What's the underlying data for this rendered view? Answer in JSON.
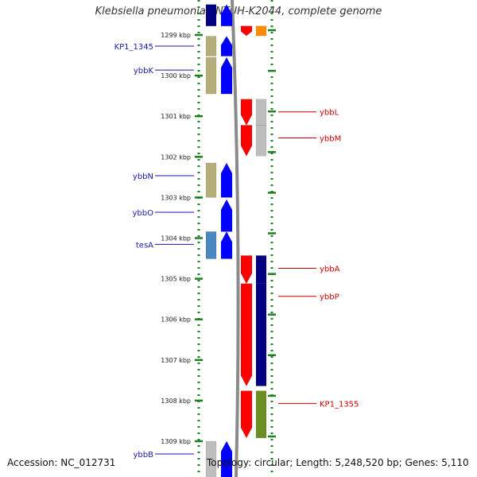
{
  "title": "Klebsiella pneumoniae NTUH-K2044, complete genome",
  "footer": {
    "accession": "Accession: NC_012731",
    "topology": "Topology: circular; Length: 5,248,520 bp; Genes: 5,110"
  },
  "colors": {
    "forward_label": "#1a1aa8",
    "reverse_label": "#cc0000",
    "tick": "#1e7f1e",
    "backbone": "#8a8a8a",
    "blue": "#0000ff",
    "red": "#ff0000",
    "navy": "#000080",
    "khaki": "#b5ad7a",
    "grey": "#bdbdbd",
    "steel": "#4a86c0",
    "olive": "#6b8e23",
    "lime": "#99e633",
    "orange": "#ff8c00"
  },
  "axis": {
    "unit": "kbp",
    "ticks": [
      {
        "label": "1299 kbp",
        "kbp": 1299
      },
      {
        "label": "1300 kbp",
        "kbp": 1300
      },
      {
        "label": "1301 kbp",
        "kbp": 1301
      },
      {
        "label": "1302 kbp",
        "kbp": 1302
      },
      {
        "label": "1303 kbp",
        "kbp": 1303
      },
      {
        "label": "1304 kbp",
        "kbp": 1304
      },
      {
        "label": "1305 kbp",
        "kbp": 1305
      },
      {
        "label": "1306 kbp",
        "kbp": 1306
      },
      {
        "label": "1307 kbp",
        "kbp": 1307
      },
      {
        "label": "1308 kbp",
        "kbp": 1308
      },
      {
        "label": "1309 kbp",
        "kbp": 1309
      }
    ]
  },
  "genes": [
    {
      "name": "",
      "strand": "+",
      "start": 1298.25,
      "end": 1298.78,
      "color": "blue",
      "cog": "navy"
    },
    {
      "name": "",
      "strand": "-",
      "start": 1298.78,
      "end": 1299.02,
      "color": "red",
      "cog": "orange"
    },
    {
      "name": "KP1_1345",
      "strand": "+",
      "start": 1299.03,
      "end": 1299.52,
      "color": "blue",
      "cog": "khaki"
    },
    {
      "name": "ybbK",
      "strand": "+",
      "start": 1299.55,
      "end": 1300.45,
      "color": "blue",
      "cog": "khaki"
    },
    {
      "name": "ybbL",
      "strand": "-",
      "start": 1300.58,
      "end": 1301.22,
      "color": "red",
      "cog": "grey"
    },
    {
      "name": "ybbM",
      "strand": "-",
      "start": 1301.22,
      "end": 1301.98,
      "color": "red",
      "cog": "grey"
    },
    {
      "name": "ybbN",
      "strand": "+",
      "start": 1302.15,
      "end": 1303.0,
      "color": "blue",
      "cog": "khaki"
    },
    {
      "name": "ybbO",
      "strand": "+",
      "start": 1303.05,
      "end": 1303.84,
      "color": "blue",
      "cog": ""
    },
    {
      "name": "tesA",
      "strand": "+",
      "start": 1303.84,
      "end": 1304.51,
      "color": "blue",
      "cog": "steel"
    },
    {
      "name": "ybbA",
      "strand": "-",
      "start": 1304.43,
      "end": 1305.12,
      "color": "red",
      "cog": "navy"
    },
    {
      "name": "ybbP",
      "strand": "-",
      "start": 1305.12,
      "end": 1307.64,
      "color": "red",
      "cog": "navy"
    },
    {
      "name": "KP1_1355",
      "strand": "-",
      "start": 1307.76,
      "end": 1308.92,
      "color": "red",
      "cog": "olive"
    },
    {
      "name": "ybbB",
      "strand": "+",
      "start": 1309.0,
      "end": 1309.98,
      "color": "blue",
      "cog": "grey"
    }
  ]
}
